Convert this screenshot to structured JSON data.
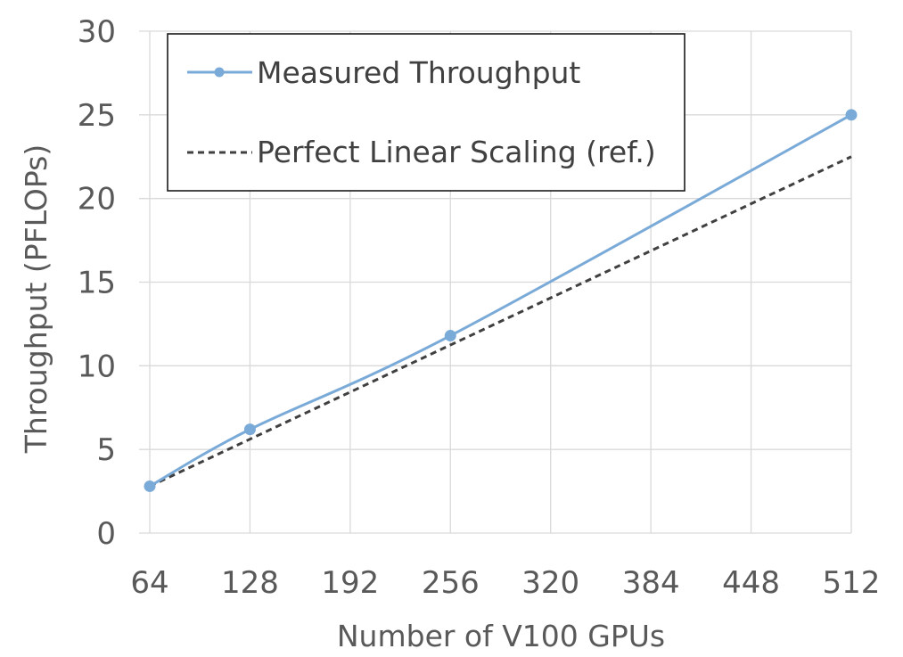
{
  "chart_data": {
    "type": "line",
    "xlabel": "Number of V100 GPUs",
    "ylabel": "Throughput (PFLOPs)",
    "x_ticks": [
      64,
      128,
      192,
      256,
      320,
      384,
      448,
      512
    ],
    "y_ticks": [
      0,
      5,
      10,
      15,
      20,
      25,
      30
    ],
    "xlim": [
      64,
      512
    ],
    "ylim": [
      0,
      30
    ],
    "grid": true,
    "legend_position": "top-left",
    "series": [
      {
        "name": "Measured Throughput",
        "style": "solid-with-markers",
        "color": "#7aaad8",
        "x": [
          64,
          128,
          256,
          512
        ],
        "y": [
          2.8,
          6.2,
          11.8,
          25.0
        ]
      },
      {
        "name": "Perfect Linear Scaling (ref.)",
        "style": "dashed",
        "color": "#404040",
        "x": [
          64,
          512
        ],
        "y": [
          2.8,
          22.5
        ]
      }
    ]
  }
}
